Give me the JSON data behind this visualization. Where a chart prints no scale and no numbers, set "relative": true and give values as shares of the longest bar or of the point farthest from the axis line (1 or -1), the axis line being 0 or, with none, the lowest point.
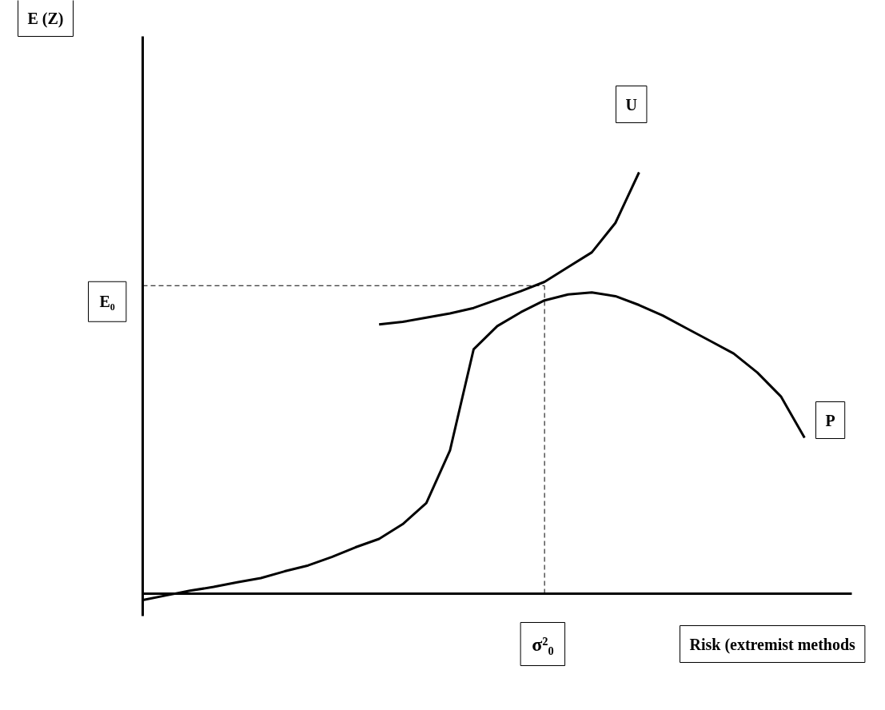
{
  "chart_data": {
    "type": "line",
    "relative": true,
    "xlabel": "Risk (extremist methods",
    "annotations": [
      "E (Z)",
      "σ²₀"
    ],
    "marker": "none",
    "line_style": "solid",
    "categories": [
      null,
      null,
      null,
      null,
      null,
      null,
      null,
      null,
      null,
      null,
      null,
      null,
      null,
      null,
      null,
      null,
      null,
      null,
      null,
      null,
      null,
      null,
      null,
      null,
      null,
      null,
      null,
      null,
      null,
      null,
      null
    ],
    "series": [
      {
        "name": "U",
        "color": "#000000",
        "values": [
          null,
          null,
          null,
          null,
          null,
          null,
          null,
          null,
          null,
          null,
          0.639,
          0.645,
          0.655,
          0.665,
          0.678,
          0.698,
          0.718,
          0.74,
          0.775,
          0.81,
          0.88,
          1.0,
          null,
          null,
          null,
          null,
          null,
          null,
          null,
          null,
          null
        ]
      },
      {
        "name": "P",
        "color": "#000000",
        "values": [
          -0.015,
          -0.004,
          0.007,
          0.016,
          0.027,
          0.037,
          0.053,
          0.067,
          0.087,
          0.11,
          0.13,
          0.165,
          0.215,
          0.34,
          0.58,
          0.635,
          0.668,
          0.696,
          0.71,
          0.715,
          0.706,
          0.685,
          0.66,
          0.63,
          0.6,
          0.57,
          0.525,
          0.468,
          0.37,
          null,
          null
        ]
      }
    ],
    "ref_lines": [
      {
        "axis": "y",
        "value": 0.731,
        "label": "E₀",
        "line_style": "dashed"
      }
    ]
  }
}
